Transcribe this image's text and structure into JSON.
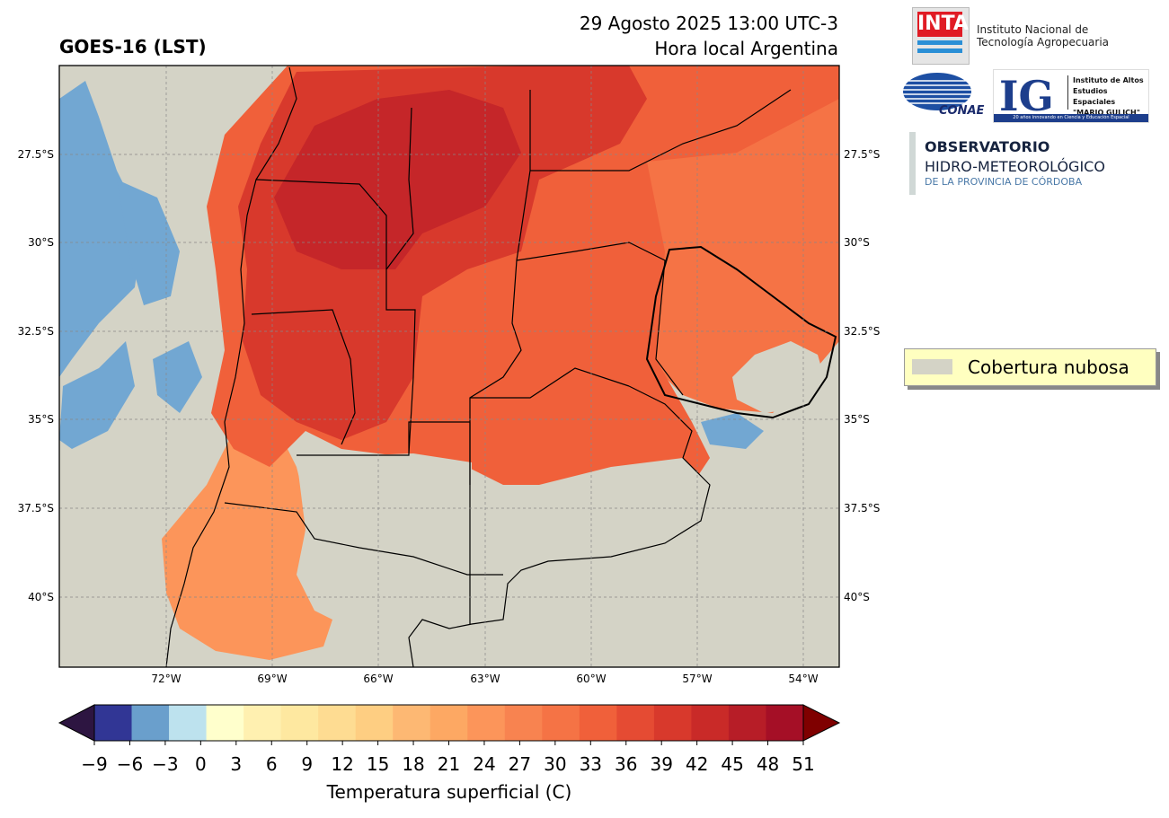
{
  "header": {
    "left_title": "GOES-16 (LST)",
    "date_line": "29 Agosto 2025 13:00 UTC-3",
    "local_line": "Hora local Argentina"
  },
  "axes": {
    "lat_labels": [
      "27.5°S",
      "30°S",
      "32.5°S",
      "35°S",
      "37.5°S",
      "40°S"
    ],
    "lon_labels": [
      "72°W",
      "69°W",
      "66°W",
      "63°W",
      "60°W",
      "57°W",
      "54°W"
    ]
  },
  "logos": {
    "inta_mark": "INTA",
    "inta_text_1": "Instituto Nacional de",
    "inta_text_2": "Tecnología Agropecuaria",
    "conae": "CONAE",
    "ig_mark": "IG",
    "ig_text_1": "Instituto de Altos",
    "ig_text_2": "Estudios Espaciales",
    "ig_text_3": "\"MARIO GULICH\"",
    "ig_band": "20 años innovando en Ciencia y Educación Espacial",
    "obs_title": "OBSERVATORIO",
    "obs_sub": "HIDRO-METEOROLÓGICO",
    "obs_small": "DE LA PROVINCIA DE CÓRDOBA"
  },
  "legend": {
    "cloud_label": "Cobertura nubosa",
    "cloud_color": "#d4d3c6"
  },
  "colorbar": {
    "label": "Temperatura superficial (C)",
    "ticks": [
      "−9",
      "−6",
      "−3",
      "0",
      "3",
      "6",
      "9",
      "12",
      "15",
      "18",
      "21",
      "24",
      "27",
      "30",
      "33",
      "36",
      "39",
      "42",
      "45",
      "48",
      "51"
    ],
    "colors": [
      "#313695",
      "#6a9fcc",
      "#bde2ee",
      "#ffffcc",
      "#fff0b0",
      "#fee8a0",
      "#fedc92",
      "#fece82",
      "#fdb873",
      "#fda863",
      "#fc955a",
      "#f88350",
      "#f57345",
      "#f0603a",
      "#e54b33",
      "#d8392c",
      "#c92a28",
      "#b71d27",
      "#a50f26"
    ],
    "under_color": "#2d1541",
    "over_color": "#7f0000"
  },
  "map_colors": {
    "cloud": "#d4d3c6",
    "cold_patch": "#72a7d2",
    "north_hot": "#d8392c",
    "very_hot": "#c52629",
    "warm": "#f0603a",
    "mild": "#f57345",
    "cool": "#fc955a",
    "border_country": "#000000",
    "border_dept": "#6e7f8d"
  }
}
